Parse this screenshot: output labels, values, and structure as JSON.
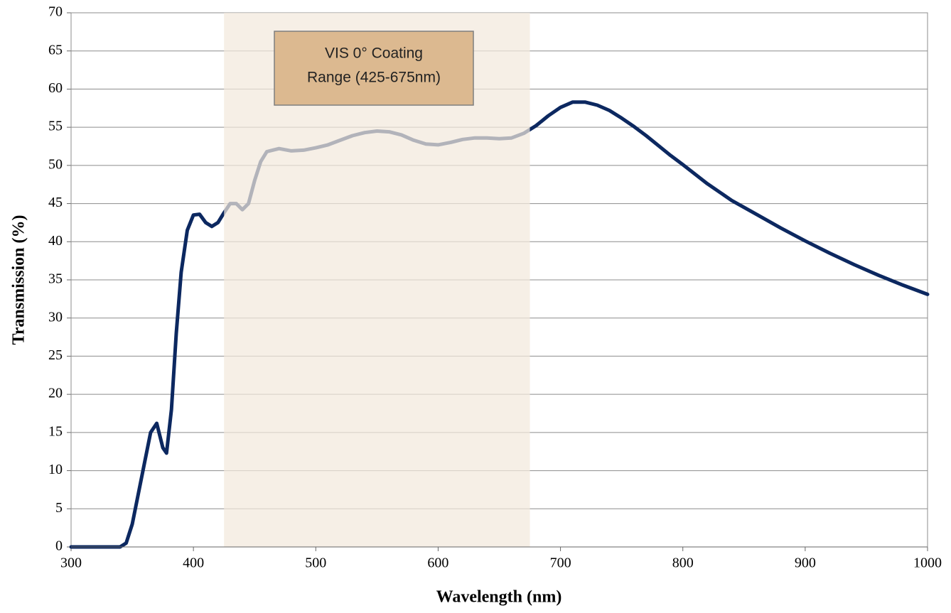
{
  "chart_data": {
    "type": "line",
    "xlabel": "Wavelength (nm)",
    "ylabel": "Transmission (%)",
    "annotation_lines": [
      "VIS 0° Coating",
      "Range (425-675nm)"
    ],
    "band": [
      425,
      675
    ],
    "band_color": "#f2e9dc",
    "annotation_color": "#dcb990",
    "xlim": [
      300,
      1000
    ],
    "xticks": [
      300,
      400,
      500,
      600,
      700,
      800,
      900,
      1000
    ],
    "ylim": [
      0,
      70
    ],
    "yticks": [
      0,
      5,
      10,
      15,
      20,
      25,
      30,
      35,
      40,
      45,
      50,
      55,
      60,
      65,
      70
    ],
    "grid": true,
    "x": [
      300,
      320,
      340,
      345,
      350,
      355,
      360,
      365,
      370,
      375,
      378,
      382,
      386,
      390,
      395,
      400,
      405,
      410,
      415,
      420,
      425,
      430,
      435,
      440,
      445,
      450,
      455,
      460,
      470,
      480,
      490,
      500,
      510,
      520,
      530,
      540,
      550,
      560,
      570,
      580,
      590,
      600,
      610,
      620,
      630,
      640,
      650,
      660,
      670,
      680,
      690,
      700,
      710,
      720,
      730,
      740,
      750,
      760,
      770,
      780,
      790,
      800,
      820,
      840,
      860,
      880,
      900,
      920,
      940,
      960,
      980,
      1000
    ],
    "series": [
      {
        "name": "Transmission",
        "color": "#0c2860",
        "values": [
          0,
          0,
          0,
          0.5,
          3,
          7,
          11,
          15,
          16.2,
          13,
          12.3,
          18,
          28,
          36,
          41.5,
          43.5,
          43.6,
          42.5,
          42,
          42.5,
          43.8,
          45,
          45,
          44.2,
          45,
          48,
          50.5,
          51.8,
          52.2,
          51.9,
          52,
          52.3,
          52.7,
          53.3,
          53.9,
          54.3,
          54.5,
          54.4,
          54,
          53.3,
          52.8,
          52.7,
          53,
          53.4,
          53.6,
          53.6,
          53.5,
          53.6,
          54.2,
          55.2,
          56.5,
          57.6,
          58.3,
          58.3,
          57.9,
          57.2,
          56.2,
          55.1,
          53.9,
          52.6,
          51.3,
          50.1,
          47.6,
          45.4,
          43.6,
          41.8,
          40.1,
          38.5,
          37,
          35.6,
          34.3,
          33.1
        ]
      }
    ]
  }
}
